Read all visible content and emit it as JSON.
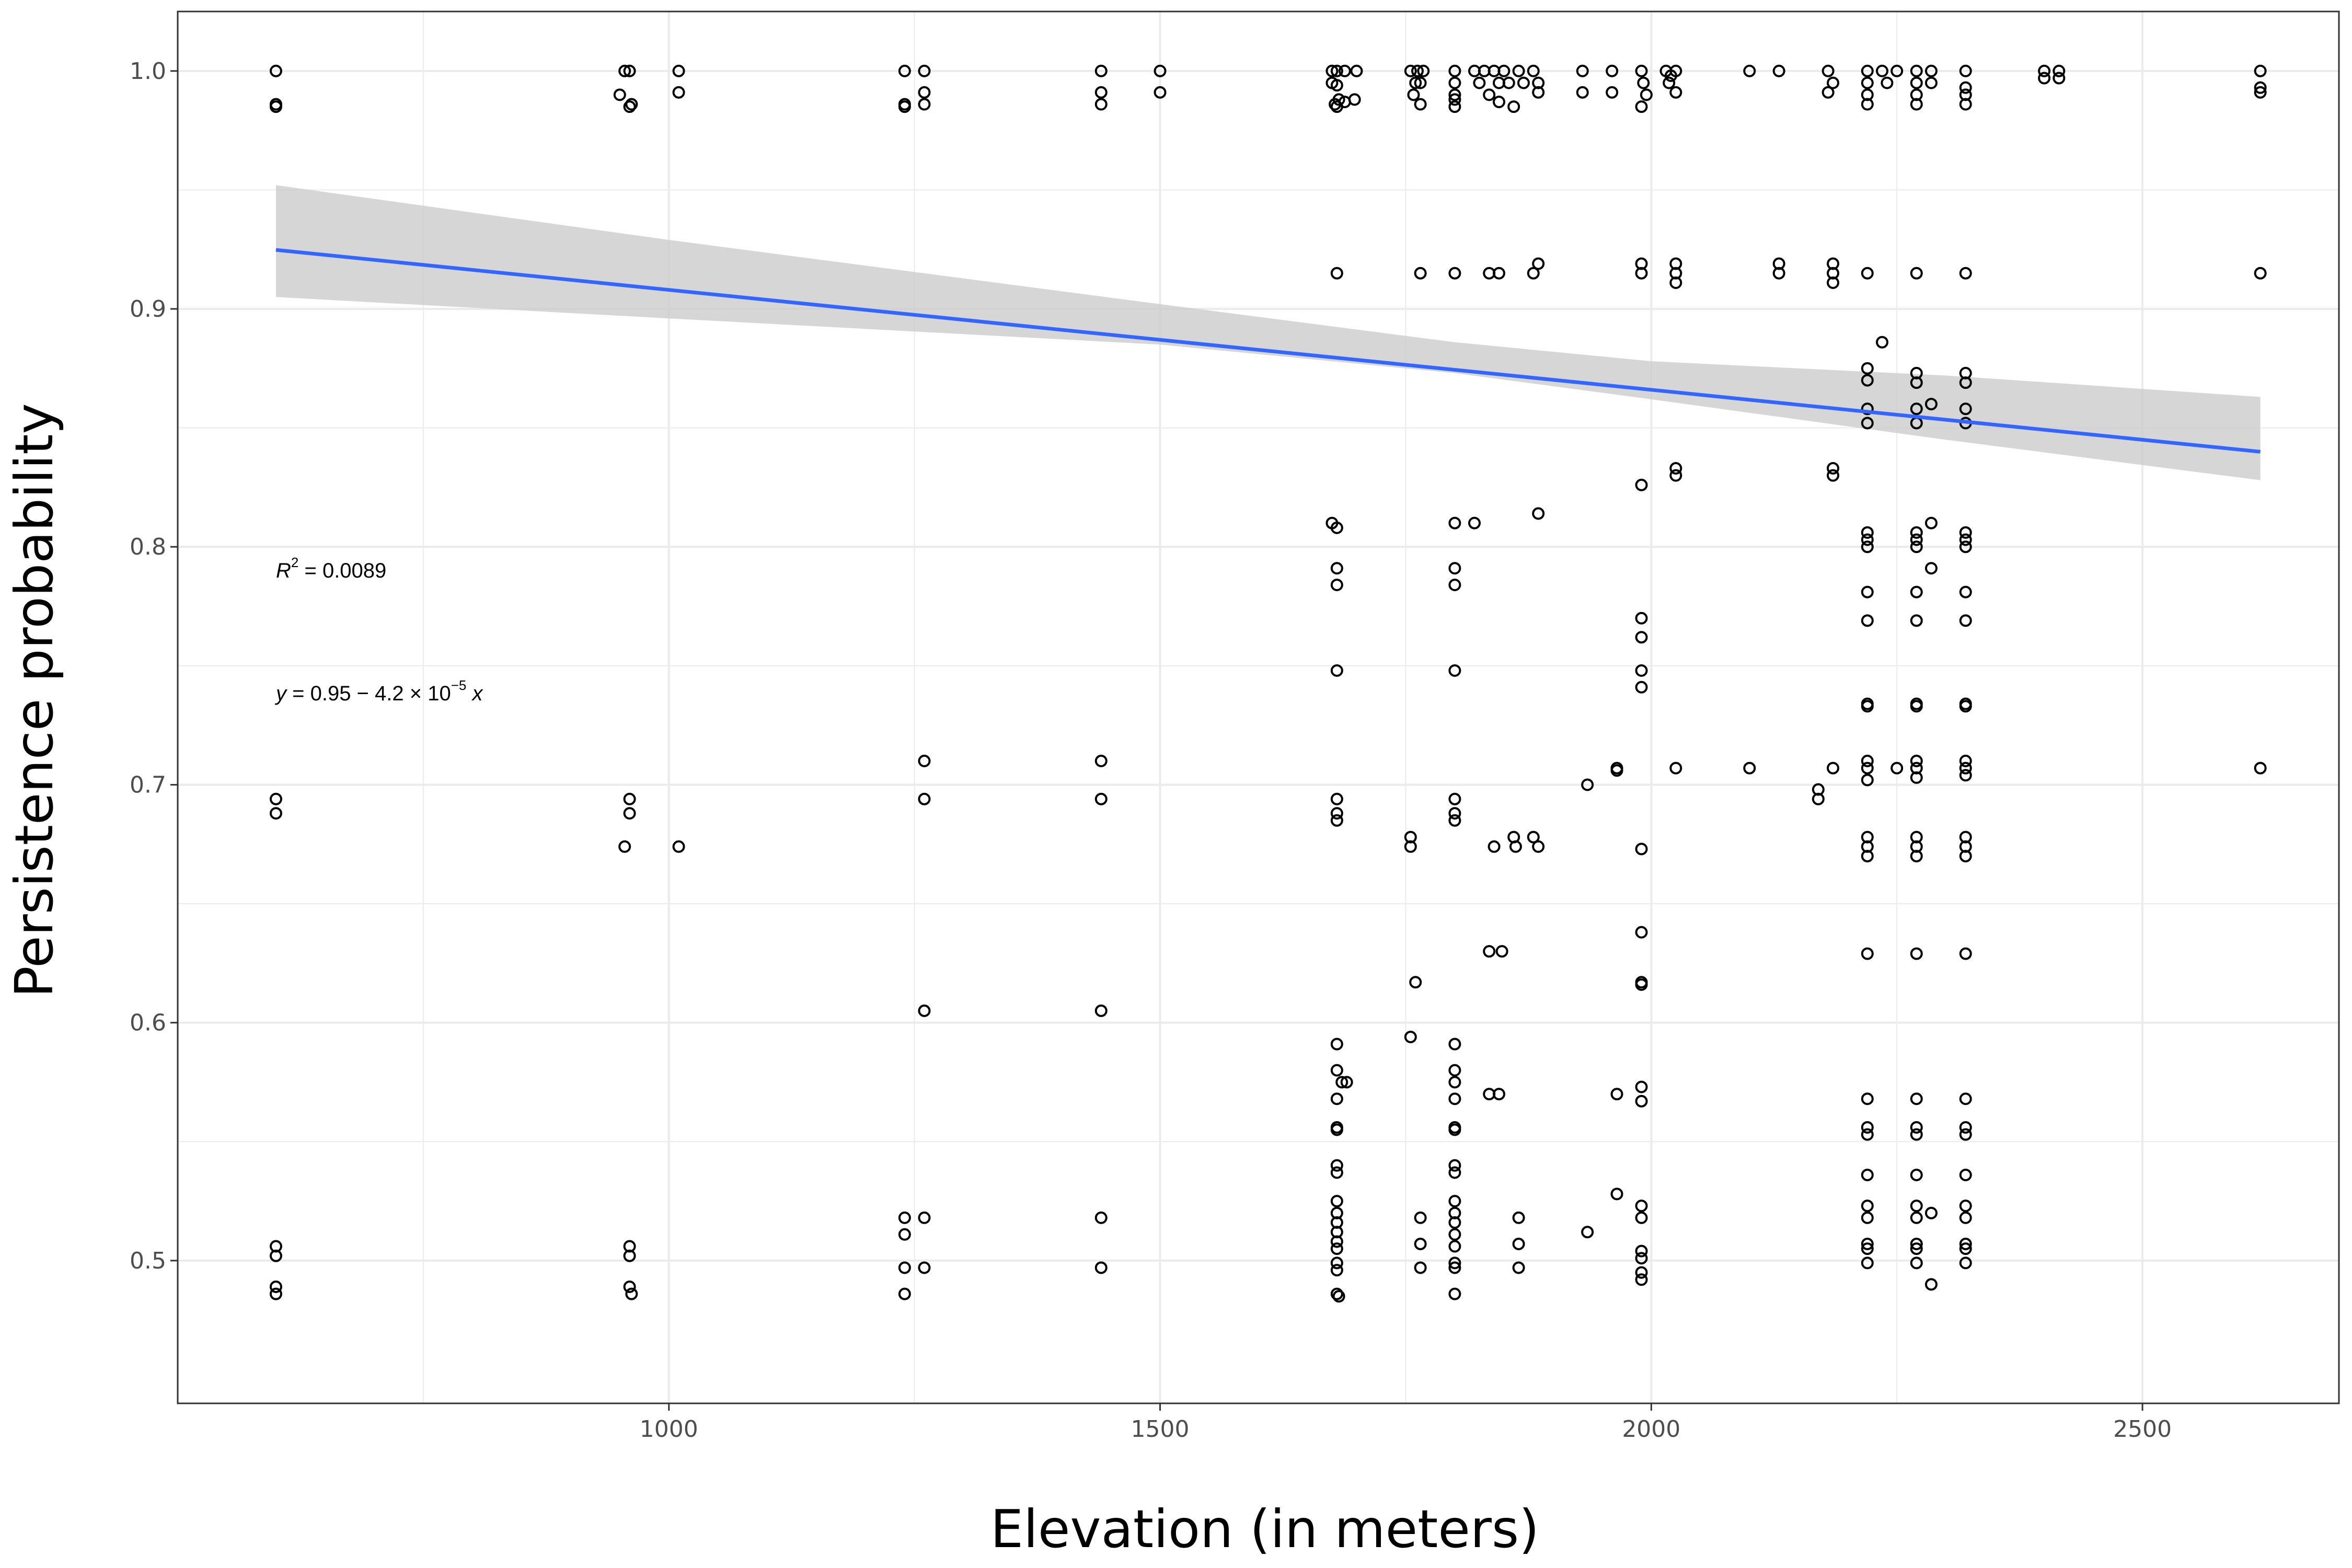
{
  "chart_data": {
    "type": "scatter",
    "title": "",
    "xlabel": "Elevation (in meters)",
    "ylabel": "Persistence probability",
    "xlim": [
      500,
      2700
    ],
    "ylim": [
      0.44,
      1.025
    ],
    "grid": true,
    "x_ticks": [
      1000,
      1500,
      2000,
      2500
    ],
    "x_tick_labels": [
      "1000",
      "1500",
      "2000",
      "2500"
    ],
    "x_minor_ticks": [
      750,
      1250,
      1750,
      2250
    ],
    "y_ticks": [
      0.5,
      0.6,
      0.7,
      0.8,
      0.9,
      1.0
    ],
    "y_tick_labels": [
      "0.5",
      "0.6",
      "0.7",
      "0.8",
      "0.9",
      "1.0"
    ],
    "y_minor_ticks": [
      0.55,
      0.65,
      0.75,
      0.85,
      0.95
    ],
    "colors": {
      "points": "#000000",
      "fit_line": "#3366ff",
      "confidence_band": "#cccccc",
      "grid": "#ebebeb",
      "panel_border": "#333333"
    },
    "regression": {
      "intercept": 0.95,
      "slope": -4.2e-05,
      "x_range": [
        600,
        2620
      ],
      "confidence_band": [
        {
          "x": 600,
          "lower": 0.905,
          "upper": 0.952
        },
        {
          "x": 1000,
          "lower": 0.896,
          "upper": 0.929
        },
        {
          "x": 1500,
          "lower": 0.885,
          "upper": 0.902
        },
        {
          "x": 1800,
          "lower": 0.873,
          "upper": 0.886
        },
        {
          "x": 2000,
          "lower": 0.862,
          "upper": 0.878
        },
        {
          "x": 2300,
          "lower": 0.845,
          "upper": 0.872
        },
        {
          "x": 2620,
          "lower": 0.828,
          "upper": 0.863
        }
      ]
    },
    "annotations": {
      "r2_label": "R",
      "r2_exponent": "2",
      "r2_value": " = 0.0089",
      "eq_y": "y",
      "eq_body": " = 0.95 − 4.2 × 10",
      "eq_exponent": "−5",
      "eq_x": " x"
    },
    "points": [
      [
        600,
        1.0
      ],
      [
        600,
        0.986
      ],
      [
        600,
        0.985
      ],
      [
        600,
        0.694
      ],
      [
        600,
        0.688
      ],
      [
        600,
        0.506
      ],
      [
        600,
        0.502
      ],
      [
        600,
        0.489
      ],
      [
        600,
        0.486
      ],
      [
        950,
        0.99
      ],
      [
        955,
        1.0
      ],
      [
        960,
        0.985
      ],
      [
        960,
        1.0
      ],
      [
        962,
        0.986
      ],
      [
        955,
        0.674
      ],
      [
        960,
        0.694
      ],
      [
        960,
        0.688
      ],
      [
        960,
        0.506
      ],
      [
        960,
        0.502
      ],
      [
        960,
        0.489
      ],
      [
        962,
        0.486
      ],
      [
        1010,
        1.0
      ],
      [
        1010,
        0.991
      ],
      [
        1010,
        0.674
      ],
      [
        1240,
        1.0
      ],
      [
        1240,
        0.986
      ],
      [
        1240,
        0.985
      ],
      [
        1240,
        0.518
      ],
      [
        1240,
        0.511
      ],
      [
        1240,
        0.497
      ],
      [
        1240,
        0.486
      ],
      [
        1260,
        1.0
      ],
      [
        1260,
        0.991
      ],
      [
        1260,
        0.986
      ],
      [
        1260,
        0.71
      ],
      [
        1260,
        0.694
      ],
      [
        1260,
        0.605
      ],
      [
        1260,
        0.518
      ],
      [
        1260,
        0.497
      ],
      [
        1440,
        1.0
      ],
      [
        1440,
        0.991
      ],
      [
        1440,
        0.986
      ],
      [
        1440,
        0.71
      ],
      [
        1440,
        0.694
      ],
      [
        1440,
        0.605
      ],
      [
        1440,
        0.518
      ],
      [
        1440,
        0.497
      ],
      [
        1500,
        1.0
      ],
      [
        1500,
        0.991
      ],
      [
        1675,
        1.0
      ],
      [
        1675,
        0.995
      ],
      [
        1678,
        0.986
      ],
      [
        1680,
        1.0
      ],
      [
        1680,
        0.994
      ],
      [
        1682,
        0.988
      ],
      [
        1680,
        0.985
      ],
      [
        1688,
        1.0
      ],
      [
        1688,
        0.987
      ],
      [
        1700,
        1.0
      ],
      [
        1698,
        0.988
      ],
      [
        1680,
        0.915
      ],
      [
        1675,
        0.81
      ],
      [
        1680,
        0.808
      ],
      [
        1680,
        0.791
      ],
      [
        1680,
        0.784
      ],
      [
        1680,
        0.748
      ],
      [
        1680,
        0.694
      ],
      [
        1680,
        0.688
      ],
      [
        1680,
        0.685
      ],
      [
        1680,
        0.591
      ],
      [
        1680,
        0.58
      ],
      [
        1685,
        0.575
      ],
      [
        1690,
        0.575
      ],
      [
        1680,
        0.568
      ],
      [
        1680,
        0.556
      ],
      [
        1680,
        0.555
      ],
      [
        1680,
        0.54
      ],
      [
        1680,
        0.537
      ],
      [
        1680,
        0.525
      ],
      [
        1680,
        0.52
      ],
      [
        1680,
        0.516
      ],
      [
        1680,
        0.512
      ],
      [
        1680,
        0.508
      ],
      [
        1680,
        0.505
      ],
      [
        1680,
        0.499
      ],
      [
        1680,
        0.496
      ],
      [
        1680,
        0.486
      ],
      [
        1682,
        0.485
      ],
      [
        1755,
        1.0
      ],
      [
        1760,
        0.995
      ],
      [
        1758,
        0.99
      ],
      [
        1765,
        0.986
      ],
      [
        1762,
        1.0
      ],
      [
        1768,
        1.0
      ],
      [
        1765,
        0.995
      ],
      [
        1765,
        0.915
      ],
      [
        1755,
        0.678
      ],
      [
        1755,
        0.674
      ],
      [
        1760,
        0.617
      ],
      [
        1755,
        0.594
      ],
      [
        1765,
        0.518
      ],
      [
        1765,
        0.507
      ],
      [
        1765,
        0.497
      ],
      [
        1800,
        1.0
      ],
      [
        1800,
        0.995
      ],
      [
        1800,
        0.99
      ],
      [
        1800,
        0.988
      ],
      [
        1800,
        0.985
      ],
      [
        1800,
        0.915
      ],
      [
        1800,
        0.81
      ],
      [
        1800,
        0.791
      ],
      [
        1800,
        0.784
      ],
      [
        1800,
        0.748
      ],
      [
        1800,
        0.694
      ],
      [
        1800,
        0.688
      ],
      [
        1800,
        0.685
      ],
      [
        1800,
        0.591
      ],
      [
        1800,
        0.58
      ],
      [
        1800,
        0.575
      ],
      [
        1800,
        0.568
      ],
      [
        1800,
        0.556
      ],
      [
        1800,
        0.555
      ],
      [
        1800,
        0.54
      ],
      [
        1800,
        0.537
      ],
      [
        1800,
        0.525
      ],
      [
        1800,
        0.52
      ],
      [
        1800,
        0.516
      ],
      [
        1800,
        0.511
      ],
      [
        1800,
        0.506
      ],
      [
        1800,
        0.499
      ],
      [
        1800,
        0.497
      ],
      [
        1800,
        0.486
      ],
      [
        1820,
        1.0
      ],
      [
        1825,
        0.995
      ],
      [
        1830,
        1.0
      ],
      [
        1835,
        0.99
      ],
      [
        1840,
        1.0
      ],
      [
        1845,
        0.995
      ],
      [
        1845,
        0.987
      ],
      [
        1850,
        1.0
      ],
      [
        1855,
        0.995
      ],
      [
        1860,
        0.985
      ],
      [
        1865,
        1.0
      ],
      [
        1870,
        0.995
      ],
      [
        1820,
        0.81
      ],
      [
        1835,
        0.915
      ],
      [
        1845,
        0.915
      ],
      [
        1840,
        0.674
      ],
      [
        1860,
        0.678
      ],
      [
        1862,
        0.674
      ],
      [
        1835,
        0.63
      ],
      [
        1848,
        0.63
      ],
      [
        1835,
        0.57
      ],
      [
        1845,
        0.57
      ],
      [
        1865,
        0.518
      ],
      [
        1865,
        0.507
      ],
      [
        1865,
        0.497
      ],
      [
        1880,
        1.0
      ],
      [
        1885,
        0.995
      ],
      [
        1885,
        0.991
      ],
      [
        1880,
        0.915
      ],
      [
        1885,
        0.919
      ],
      [
        1885,
        0.814
      ],
      [
        1880,
        0.678
      ],
      [
        1885,
        0.674
      ],
      [
        1930,
        1.0
      ],
      [
        1930,
        0.991
      ],
      [
        1935,
        0.7
      ],
      [
        1935,
        0.512
      ],
      [
        1960,
        1.0
      ],
      [
        1960,
        0.991
      ],
      [
        1965,
        0.707
      ],
      [
        1965,
        0.706
      ],
      [
        1965,
        0.57
      ],
      [
        1965,
        0.528
      ],
      [
        1990,
        1.0
      ],
      [
        1992,
        0.995
      ],
      [
        1995,
        0.99
      ],
      [
        1990,
        0.985
      ],
      [
        1990,
        0.919
      ],
      [
        1990,
        0.915
      ],
      [
        1990,
        0.826
      ],
      [
        1990,
        0.77
      ],
      [
        1990,
        0.762
      ],
      [
        1990,
        0.748
      ],
      [
        1990,
        0.741
      ],
      [
        1990,
        0.673
      ],
      [
        1990,
        0.638
      ],
      [
        1990,
        0.617
      ],
      [
        1990,
        0.616
      ],
      [
        1990,
        0.573
      ],
      [
        1990,
        0.567
      ],
      [
        1990,
        0.523
      ],
      [
        1990,
        0.518
      ],
      [
        1990,
        0.504
      ],
      [
        1990,
        0.501
      ],
      [
        1990,
        0.495
      ],
      [
        1990,
        0.492
      ],
      [
        2015,
        1.0
      ],
      [
        2018,
        0.995
      ],
      [
        2020,
        0.998
      ],
      [
        2025,
        1.0
      ],
      [
        2025,
        0.991
      ],
      [
        2025,
        0.919
      ],
      [
        2025,
        0.915
      ],
      [
        2025,
        0.911
      ],
      [
        2025,
        0.833
      ],
      [
        2025,
        0.83
      ],
      [
        2025,
        0.707
      ],
      [
        2100,
        1.0
      ],
      [
        2100,
        0.707
      ],
      [
        2130,
        1.0
      ],
      [
        2130,
        0.919
      ],
      [
        2130,
        0.915
      ],
      [
        2170,
        0.698
      ],
      [
        2170,
        0.694
      ],
      [
        2180,
        1.0
      ],
      [
        2180,
        0.991
      ],
      [
        2185,
        0.995
      ],
      [
        2185,
        0.919
      ],
      [
        2185,
        0.915
      ],
      [
        2185,
        0.911
      ],
      [
        2185,
        0.833
      ],
      [
        2185,
        0.83
      ],
      [
        2185,
        0.707
      ],
      [
        2220,
        1.0
      ],
      [
        2220,
        0.995
      ],
      [
        2220,
        0.99
      ],
      [
        2220,
        0.986
      ],
      [
        2220,
        0.915
      ],
      [
        2220,
        0.875
      ],
      [
        2220,
        0.87
      ],
      [
        2220,
        0.858
      ],
      [
        2220,
        0.852
      ],
      [
        2220,
        0.806
      ],
      [
        2220,
        0.803
      ],
      [
        2220,
        0.8
      ],
      [
        2220,
        0.781
      ],
      [
        2220,
        0.769
      ],
      [
        2220,
        0.734
      ],
      [
        2220,
        0.733
      ],
      [
        2220,
        0.71
      ],
      [
        2220,
        0.707
      ],
      [
        2220,
        0.702
      ],
      [
        2220,
        0.678
      ],
      [
        2220,
        0.674
      ],
      [
        2220,
        0.67
      ],
      [
        2220,
        0.629
      ],
      [
        2220,
        0.568
      ],
      [
        2220,
        0.556
      ],
      [
        2220,
        0.553
      ],
      [
        2220,
        0.536
      ],
      [
        2220,
        0.523
      ],
      [
        2220,
        0.518
      ],
      [
        2220,
        0.507
      ],
      [
        2220,
        0.505
      ],
      [
        2220,
        0.499
      ],
      [
        2235,
        1.0
      ],
      [
        2240,
        0.995
      ],
      [
        2235,
        0.886
      ],
      [
        2250,
        1.0
      ],
      [
        2250,
        0.707
      ],
      [
        2270,
        1.0
      ],
      [
        2270,
        0.995
      ],
      [
        2270,
        0.99
      ],
      [
        2270,
        0.986
      ],
      [
        2270,
        0.915
      ],
      [
        2270,
        0.873
      ],
      [
        2270,
        0.869
      ],
      [
        2270,
        0.858
      ],
      [
        2270,
        0.852
      ],
      [
        2270,
        0.806
      ],
      [
        2270,
        0.803
      ],
      [
        2270,
        0.8
      ],
      [
        2270,
        0.781
      ],
      [
        2270,
        0.769
      ],
      [
        2270,
        0.734
      ],
      [
        2270,
        0.733
      ],
      [
        2270,
        0.71
      ],
      [
        2270,
        0.707
      ],
      [
        2270,
        0.703
      ],
      [
        2270,
        0.678
      ],
      [
        2270,
        0.674
      ],
      [
        2270,
        0.67
      ],
      [
        2270,
        0.629
      ],
      [
        2270,
        0.568
      ],
      [
        2270,
        0.556
      ],
      [
        2270,
        0.553
      ],
      [
        2270,
        0.536
      ],
      [
        2270,
        0.523
      ],
      [
        2270,
        0.518
      ],
      [
        2270,
        0.507
      ],
      [
        2270,
        0.505
      ],
      [
        2270,
        0.499
      ],
      [
        2285,
        1.0
      ],
      [
        2285,
        0.995
      ],
      [
        2285,
        0.86
      ],
      [
        2285,
        0.81
      ],
      [
        2285,
        0.791
      ],
      [
        2285,
        0.52
      ],
      [
        2285,
        0.49
      ],
      [
        2320,
        1.0
      ],
      [
        2320,
        0.993
      ],
      [
        2320,
        0.99
      ],
      [
        2320,
        0.986
      ],
      [
        2320,
        0.915
      ],
      [
        2320,
        0.873
      ],
      [
        2320,
        0.869
      ],
      [
        2320,
        0.858
      ],
      [
        2320,
        0.852
      ],
      [
        2320,
        0.806
      ],
      [
        2320,
        0.803
      ],
      [
        2320,
        0.8
      ],
      [
        2320,
        0.781
      ],
      [
        2320,
        0.769
      ],
      [
        2320,
        0.734
      ],
      [
        2320,
        0.733
      ],
      [
        2320,
        0.71
      ],
      [
        2320,
        0.707
      ],
      [
        2320,
        0.704
      ],
      [
        2320,
        0.678
      ],
      [
        2320,
        0.674
      ],
      [
        2320,
        0.67
      ],
      [
        2320,
        0.629
      ],
      [
        2320,
        0.568
      ],
      [
        2320,
        0.556
      ],
      [
        2320,
        0.553
      ],
      [
        2320,
        0.536
      ],
      [
        2320,
        0.523
      ],
      [
        2320,
        0.518
      ],
      [
        2320,
        0.507
      ],
      [
        2320,
        0.505
      ],
      [
        2320,
        0.499
      ],
      [
        2400,
        1.0
      ],
      [
        2400,
        0.997
      ],
      [
        2415,
        1.0
      ],
      [
        2415,
        0.997
      ],
      [
        2620,
        1.0
      ],
      [
        2620,
        0.993
      ],
      [
        2620,
        0.991
      ],
      [
        2620,
        0.915
      ],
      [
        2620,
        0.707
      ]
    ]
  }
}
